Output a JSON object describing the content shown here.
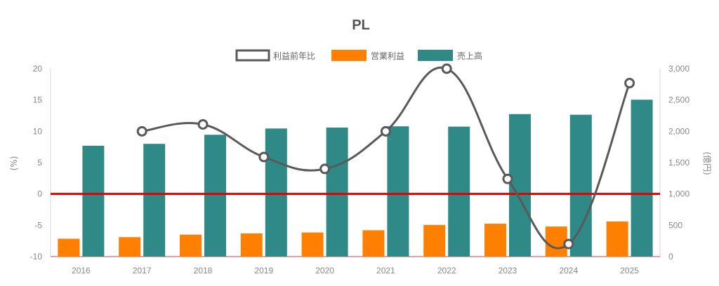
{
  "chart_data": {
    "type": "bar",
    "title": "PL",
    "categories": [
      "2016",
      "2017",
      "2018",
      "2019",
      "2020",
      "2021",
      "2022",
      "2023",
      "2024",
      "2025"
    ],
    "legend": {
      "position": "top-center"
    },
    "series": [
      {
        "name": "利益前年比",
        "type": "line",
        "axis": "left",
        "color": "#595959",
        "values": [
          null,
          10.0,
          11.1,
          5.9,
          4.0,
          10.0,
          20.0,
          2.4,
          -8.0,
          17.7
        ]
      },
      {
        "name": "営業利益",
        "type": "bar",
        "axis": "right",
        "color": "#ff8000",
        "values": [
          285,
          310,
          350,
          370,
          385,
          420,
          505,
          525,
          480,
          560
        ]
      },
      {
        "name": "売上高",
        "type": "bar",
        "axis": "right",
        "color": "#2f8a87",
        "values": [
          1770,
          1800,
          1945,
          2045,
          2060,
          2080,
          2075,
          2275,
          2265,
          2505
        ]
      }
    ],
    "left_axis": {
      "label": "(%)",
      "min": -10,
      "max": 20,
      "ticks": [
        20,
        15,
        10,
        5,
        0,
        -5,
        -10
      ],
      "tick_labels": [
        "20",
        "15",
        "10",
        "5",
        "0",
        "-5",
        "-10"
      ]
    },
    "right_axis": {
      "label": "(億円)",
      "min": 0,
      "max": 3000,
      "ticks": [
        3000,
        2500,
        2000,
        1500,
        1000,
        500,
        0
      ],
      "tick_labels": [
        "3,000",
        "2,500",
        "2,000",
        "1,500",
        "1,000",
        "500",
        "0"
      ]
    },
    "reference_line": {
      "value": 0,
      "axis": "left",
      "color": "#e00000"
    },
    "grid": false
  }
}
